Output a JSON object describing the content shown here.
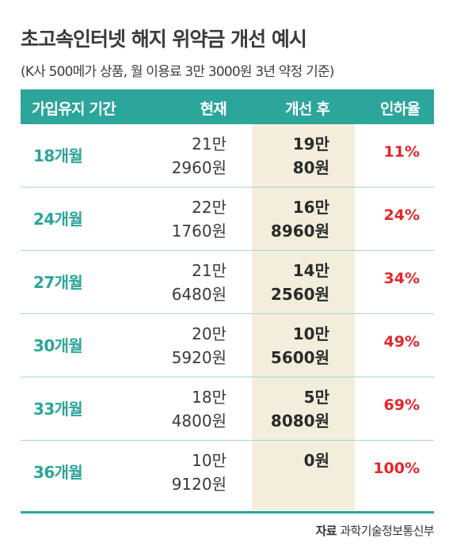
{
  "title": "초고속인터넷 해지 위약금 개선 예시",
  "subtitle": "(K사 500메가 상품, 월 이용료 3만 3000원 3년 약정 기준)",
  "table": {
    "headers": {
      "period": "가입유지 기간",
      "current": "현재",
      "improved": "개선 후",
      "reduction": "인하율"
    },
    "rows": [
      {
        "period": "18개월",
        "current": [
          "21만",
          "2960원"
        ],
        "improved": [
          "19만",
          "80원"
        ],
        "reduction": "11%"
      },
      {
        "period": "24개월",
        "current": [
          "22만",
          "1760원"
        ],
        "improved": [
          "16만",
          "8960원"
        ],
        "reduction": "24%"
      },
      {
        "period": "27개월",
        "current": [
          "21만",
          "6480원"
        ],
        "improved": [
          "14만",
          "2560원"
        ],
        "reduction": "34%"
      },
      {
        "period": "30개월",
        "current": [
          "20만",
          "5920원"
        ],
        "improved": [
          "10만",
          "5600원"
        ],
        "reduction": "49%"
      },
      {
        "period": "33개월",
        "current": [
          "18만",
          "4800원"
        ],
        "improved": [
          "5만",
          "8080원"
        ],
        "reduction": "69%"
      },
      {
        "period": "36개월",
        "current": [
          "10만",
          "9120원"
        ],
        "improved": [
          "",
          "0원"
        ],
        "reduction": "100%"
      }
    ]
  },
  "source": {
    "label": "자료",
    "text": "과학기술정보통신부"
  },
  "colors": {
    "accent": "#2ca59b",
    "highlight": "#f3eedc",
    "reduction": "#e5252a"
  }
}
